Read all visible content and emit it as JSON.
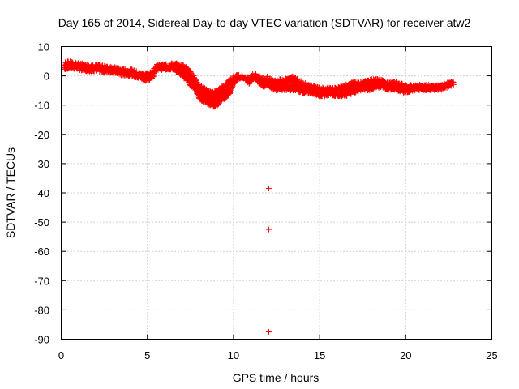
{
  "chart_data": {
    "type": "scatter",
    "title": "Day 165 of 2014, Sidereal Day-to-day VTEC variation (SDTVAR) for receiver atw2",
    "xlabel": "GPS time / hours",
    "ylabel": "SDTVAR / TECUs",
    "xlim": [
      0,
      25
    ],
    "ylim": [
      -90,
      10
    ],
    "xticks": [
      "0",
      "5",
      "10",
      "15",
      "20",
      "25"
    ],
    "yticks": [
      "10",
      "0",
      "-10",
      "-20",
      "-30",
      "-40",
      "-50",
      "-60",
      "-70",
      "-80",
      "-90"
    ],
    "grid": true,
    "marker": "+",
    "color": "#ff0000",
    "series": [
      {
        "name": "atw2",
        "band": [
          [
            0.2,
            2,
            5
          ],
          [
            0.5,
            2.5,
            5
          ],
          [
            1.0,
            2,
            4.5
          ],
          [
            1.5,
            1.5,
            4
          ],
          [
            2.0,
            1.5,
            4
          ],
          [
            2.5,
            1,
            3.5
          ],
          [
            3.0,
            1,
            3.2
          ],
          [
            3.5,
            0,
            2.5
          ],
          [
            4.0,
            0,
            2.5
          ],
          [
            4.5,
            -1,
            1.5
          ],
          [
            5.0,
            -2,
            1
          ],
          [
            5.3,
            -1,
            1.5
          ],
          [
            5.5,
            2,
            4
          ],
          [
            6.0,
            2,
            4
          ],
          [
            6.5,
            2,
            4.5
          ],
          [
            7.0,
            0,
            4
          ],
          [
            7.3,
            -2,
            3
          ],
          [
            7.6,
            -4,
            1
          ],
          [
            7.8,
            -5,
            -1
          ],
          [
            8.0,
            -8,
            -3
          ],
          [
            8.3,
            -9,
            -4
          ],
          [
            8.6,
            -10,
            -5
          ],
          [
            9.0,
            -11,
            -5
          ],
          [
            9.2,
            -9,
            -4
          ],
          [
            9.5,
            -8,
            -3
          ],
          [
            9.8,
            -6,
            -1
          ],
          [
            10.0,
            -3,
            0
          ],
          [
            10.3,
            -1,
            0.5
          ],
          [
            10.6,
            -1,
            0
          ],
          [
            10.9,
            -3,
            -0.5
          ],
          [
            11.2,
            -1,
            1
          ],
          [
            11.5,
            -3,
            0
          ],
          [
            11.8,
            -4,
            -1
          ],
          [
            12.0,
            -3,
            0
          ],
          [
            12.3,
            -5,
            -1.5
          ],
          [
            12.5,
            -5,
            -1
          ],
          [
            13.0,
            -5,
            -1
          ],
          [
            13.5,
            -5,
            0
          ],
          [
            14.0,
            -6,
            -2
          ],
          [
            14.5,
            -6,
            -3
          ],
          [
            15.0,
            -7,
            -4
          ],
          [
            15.5,
            -7,
            -4
          ],
          [
            16.0,
            -7,
            -4
          ],
          [
            16.5,
            -7,
            -3
          ],
          [
            17.0,
            -6,
            -2
          ],
          [
            17.5,
            -5,
            -2
          ],
          [
            18.0,
            -5,
            -1
          ],
          [
            18.5,
            -4,
            -1
          ],
          [
            19.0,
            -5,
            -2
          ],
          [
            19.5,
            -5,
            -2
          ],
          [
            20.0,
            -6,
            -3
          ],
          [
            20.5,
            -5,
            -3
          ],
          [
            21.0,
            -5,
            -3
          ],
          [
            21.5,
            -5,
            -3
          ],
          [
            22.0,
            -5,
            -3
          ],
          [
            22.5,
            -4,
            -2
          ],
          [
            22.8,
            -3,
            -2
          ]
        ],
        "outliers": [
          [
            12.05,
            -38.5
          ],
          [
            12.05,
            -52.5
          ],
          [
            12.05,
            -87.5
          ]
        ]
      }
    ]
  }
}
